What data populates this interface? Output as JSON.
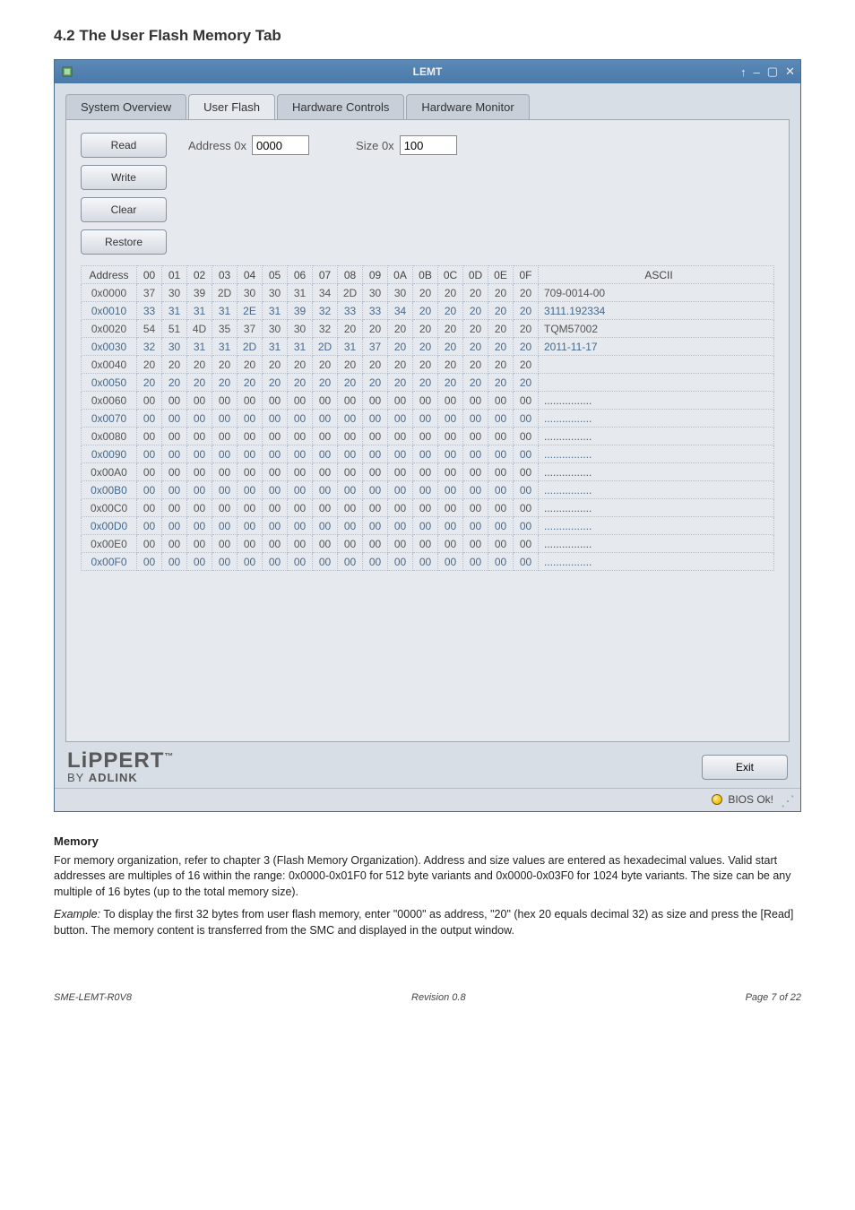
{
  "heading": "4.2  The User Flash Memory Tab",
  "window": {
    "title": "LEMT",
    "titlebar": {
      "help_tooltip": "Help",
      "min_tooltip": "Minimize",
      "max_tooltip": "Maximize",
      "close_tooltip": "Close"
    }
  },
  "tabs": {
    "system_overview": "System Overview",
    "user_flash": "User Flash",
    "hardware_controls": "Hardware Controls",
    "hardware_monitor": "Hardware Monitor"
  },
  "controls": {
    "read": "Read",
    "write": "Write",
    "clear": "Clear",
    "restore": "Restore",
    "address_label": "Address 0x",
    "address_value": "0000",
    "size_label": "Size 0x",
    "size_value": "100"
  },
  "memtable": {
    "header_addr": "Address",
    "header_cols": [
      "00",
      "01",
      "02",
      "03",
      "04",
      "05",
      "06",
      "07",
      "08",
      "09",
      "0A",
      "0B",
      "0C",
      "0D",
      "0E",
      "0F"
    ],
    "header_ascii": "ASCII",
    "rows": [
      {
        "addr": "0x0000",
        "hex": [
          "37",
          "30",
          "39",
          "2D",
          "30",
          "30",
          "31",
          "34",
          "2D",
          "30",
          "30",
          "20",
          "20",
          "20",
          "20",
          "20"
        ],
        "ascii": "709-0014-00"
      },
      {
        "addr": "0x0010",
        "hex": [
          "33",
          "31",
          "31",
          "31",
          "2E",
          "31",
          "39",
          "32",
          "33",
          "33",
          "34",
          "20",
          "20",
          "20",
          "20",
          "20"
        ],
        "ascii": "3111.192334"
      },
      {
        "addr": "0x0020",
        "hex": [
          "54",
          "51",
          "4D",
          "35",
          "37",
          "30",
          "30",
          "32",
          "20",
          "20",
          "20",
          "20",
          "20",
          "20",
          "20",
          "20"
        ],
        "ascii": "TQM57002"
      },
      {
        "addr": "0x0030",
        "hex": [
          "32",
          "30",
          "31",
          "31",
          "2D",
          "31",
          "31",
          "2D",
          "31",
          "37",
          "20",
          "20",
          "20",
          "20",
          "20",
          "20"
        ],
        "ascii": "2011-11-17"
      },
      {
        "addr": "0x0040",
        "hex": [
          "20",
          "20",
          "20",
          "20",
          "20",
          "20",
          "20",
          "20",
          "20",
          "20",
          "20",
          "20",
          "20",
          "20",
          "20",
          "20"
        ],
        "ascii": ""
      },
      {
        "addr": "0x0050",
        "hex": [
          "20",
          "20",
          "20",
          "20",
          "20",
          "20",
          "20",
          "20",
          "20",
          "20",
          "20",
          "20",
          "20",
          "20",
          "20",
          "20"
        ],
        "ascii": ""
      },
      {
        "addr": "0x0060",
        "hex": [
          "00",
          "00",
          "00",
          "00",
          "00",
          "00",
          "00",
          "00",
          "00",
          "00",
          "00",
          "00",
          "00",
          "00",
          "00",
          "00"
        ],
        "ascii": "................"
      },
      {
        "addr": "0x0070",
        "hex": [
          "00",
          "00",
          "00",
          "00",
          "00",
          "00",
          "00",
          "00",
          "00",
          "00",
          "00",
          "00",
          "00",
          "00",
          "00",
          "00"
        ],
        "ascii": "................"
      },
      {
        "addr": "0x0080",
        "hex": [
          "00",
          "00",
          "00",
          "00",
          "00",
          "00",
          "00",
          "00",
          "00",
          "00",
          "00",
          "00",
          "00",
          "00",
          "00",
          "00"
        ],
        "ascii": "................"
      },
      {
        "addr": "0x0090",
        "hex": [
          "00",
          "00",
          "00",
          "00",
          "00",
          "00",
          "00",
          "00",
          "00",
          "00",
          "00",
          "00",
          "00",
          "00",
          "00",
          "00"
        ],
        "ascii": "................"
      },
      {
        "addr": "0x00A0",
        "hex": [
          "00",
          "00",
          "00",
          "00",
          "00",
          "00",
          "00",
          "00",
          "00",
          "00",
          "00",
          "00",
          "00",
          "00",
          "00",
          "00"
        ],
        "ascii": "................"
      },
      {
        "addr": "0x00B0",
        "hex": [
          "00",
          "00",
          "00",
          "00",
          "00",
          "00",
          "00",
          "00",
          "00",
          "00",
          "00",
          "00",
          "00",
          "00",
          "00",
          "00"
        ],
        "ascii": "................"
      },
      {
        "addr": "0x00C0",
        "hex": [
          "00",
          "00",
          "00",
          "00",
          "00",
          "00",
          "00",
          "00",
          "00",
          "00",
          "00",
          "00",
          "00",
          "00",
          "00",
          "00"
        ],
        "ascii": "................"
      },
      {
        "addr": "0x00D0",
        "hex": [
          "00",
          "00",
          "00",
          "00",
          "00",
          "00",
          "00",
          "00",
          "00",
          "00",
          "00",
          "00",
          "00",
          "00",
          "00",
          "00"
        ],
        "ascii": "................"
      },
      {
        "addr": "0x00E0",
        "hex": [
          "00",
          "00",
          "00",
          "00",
          "00",
          "00",
          "00",
          "00",
          "00",
          "00",
          "00",
          "00",
          "00",
          "00",
          "00",
          "00"
        ],
        "ascii": "................"
      },
      {
        "addr": "0x00F0",
        "hex": [
          "00",
          "00",
          "00",
          "00",
          "00",
          "00",
          "00",
          "00",
          "00",
          "00",
          "00",
          "00",
          "00",
          "00",
          "00",
          "00"
        ],
        "ascii": "................"
      }
    ]
  },
  "footer": {
    "logo_top": "LiPPERT",
    "logo_tm": "™",
    "logo_by": "BY ",
    "logo_adlink": "ADLINK",
    "exit": "Exit",
    "status": "BIOS Ok!"
  },
  "doc": {
    "memory_heading": "Memory",
    "memory_p1": "For memory organization, refer to chapter 3 (Flash Memory Organization). Address and size values are entered as hexadecimal values. Valid start addresses are multiples of 16 within the range: 0x0000-0x01F0 for 512 byte variants and 0x0000-0x03F0 for 1024 byte variants. The size can be any multiple of 16 bytes (up to the total memory size).",
    "memory_example_label": "Example:",
    "memory_p2": " To display the first 32 bytes from user flash memory, enter \"0000\" as address, \"20\" (hex 20 equals decimal 32) as size and press the [Read] button. The memory content is transferred from the SMC and displayed in the output window.",
    "footer_left": "SME-LEMT-R0V8",
    "footer_center": "Revision 0.8",
    "footer_right": "Page 7 of 22"
  }
}
